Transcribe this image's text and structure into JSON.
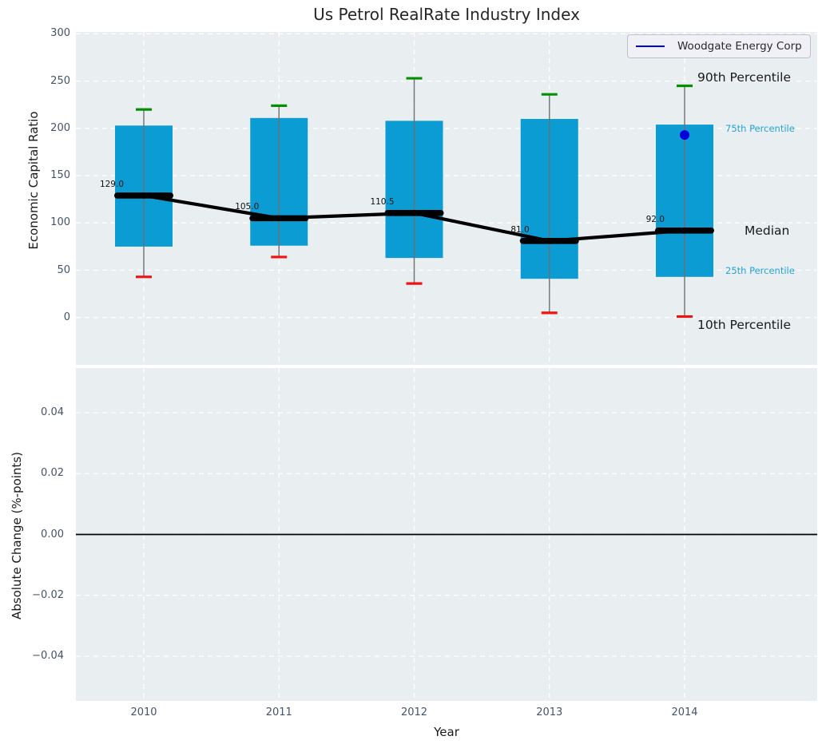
{
  "title": "Us Petrol RealRate Industry Index",
  "legend": {
    "label": "Woodgate Energy Corp"
  },
  "colors": {
    "figure_bg": "#ffffff",
    "axes_bg": "#e9eef1",
    "grid": "#ffffff",
    "box_fill": "#0c9cd4",
    "whisker": "#6f6f6f",
    "cap_top_green": "#068e06",
    "cap_bottom_red": "#ee1212",
    "median_black": "#000000",
    "company_blue": "#0000dd",
    "annotation_blue": "#1fa3d9",
    "tick_label": "#44536a",
    "zero_line": "#000000"
  },
  "chart_data": [
    {
      "type": "boxplot",
      "title": "Us Petrol RealRate Industry Index",
      "xlabel": "Year",
      "ylabel": "Economic Capital Ratio",
      "categories": [
        "2010",
        "2011",
        "2012",
        "2013",
        "2014"
      ],
      "ylim": [
        -50,
        302
      ],
      "yticks": [
        {
          "label": "0",
          "value": 0
        },
        {
          "label": "50",
          "value": 50
        },
        {
          "label": "100",
          "value": 100
        },
        {
          "label": "150",
          "value": 150
        },
        {
          "label": "200",
          "value": 200
        },
        {
          "label": "250",
          "value": 250
        },
        {
          "label": "300",
          "value": 300
        }
      ],
      "grid": "white-dashed",
      "legend_position": "upper right",
      "boxes": [
        {
          "year": "2010",
          "p10": 43,
          "p25": 75,
          "median": 129.0,
          "p75": 203,
          "p90": 220,
          "median_label": "129.0"
        },
        {
          "year": "2011",
          "p10": 64,
          "p25": 76,
          "median": 105.0,
          "p75": 211,
          "p90": 224,
          "median_label": "105.0"
        },
        {
          "year": "2012",
          "p10": 36,
          "p25": 63,
          "median": 110.5,
          "p75": 208,
          "p90": 253,
          "median_label": "110.5"
        },
        {
          "year": "2013",
          "p10": 5,
          "p25": 41,
          "median": 81.0,
          "p75": 210,
          "p90": 236,
          "median_label": "81.0"
        },
        {
          "year": "2014",
          "p10": 1,
          "p25": 43,
          "median": 92.0,
          "p75": 204,
          "p90": 245,
          "median_label": "92.0"
        }
      ],
      "median_connector": true,
      "company_series": {
        "name": "Woodgate Energy Corp",
        "points": [
          {
            "x": "2014",
            "y": 193
          }
        ]
      },
      "annotations": [
        {
          "text": "90th Percentile",
          "size": "large",
          "y": 254,
          "x": 778
        },
        {
          "text": "75th Percentile",
          "size": "small",
          "y": 200,
          "x": 813
        },
        {
          "text": "Median",
          "size": "large",
          "y": 92,
          "x": 837
        },
        {
          "text": "25th Percentile",
          "size": "small",
          "y": 50,
          "x": 813
        },
        {
          "text": "10th Percentile",
          "size": "large",
          "y": -8,
          "x": 778
        }
      ]
    },
    {
      "type": "line",
      "xlabel": "Year",
      "ylabel": "Absolute Change (%-points)",
      "categories": [
        "2010",
        "2011",
        "2012",
        "2013",
        "2014"
      ],
      "ylim": [
        -0.0547,
        0.0547
      ],
      "yticks": [
        {
          "label": "0.04",
          "value": 0.04
        },
        {
          "label": "0.02",
          "value": 0.02
        },
        {
          "label": "0.00",
          "value": 0
        },
        {
          "label": "−0.02",
          "value": -0.02
        },
        {
          "label": "−0.04",
          "value": -0.04
        }
      ],
      "grid": "white-dashed",
      "zero_line": true,
      "series": []
    }
  ]
}
